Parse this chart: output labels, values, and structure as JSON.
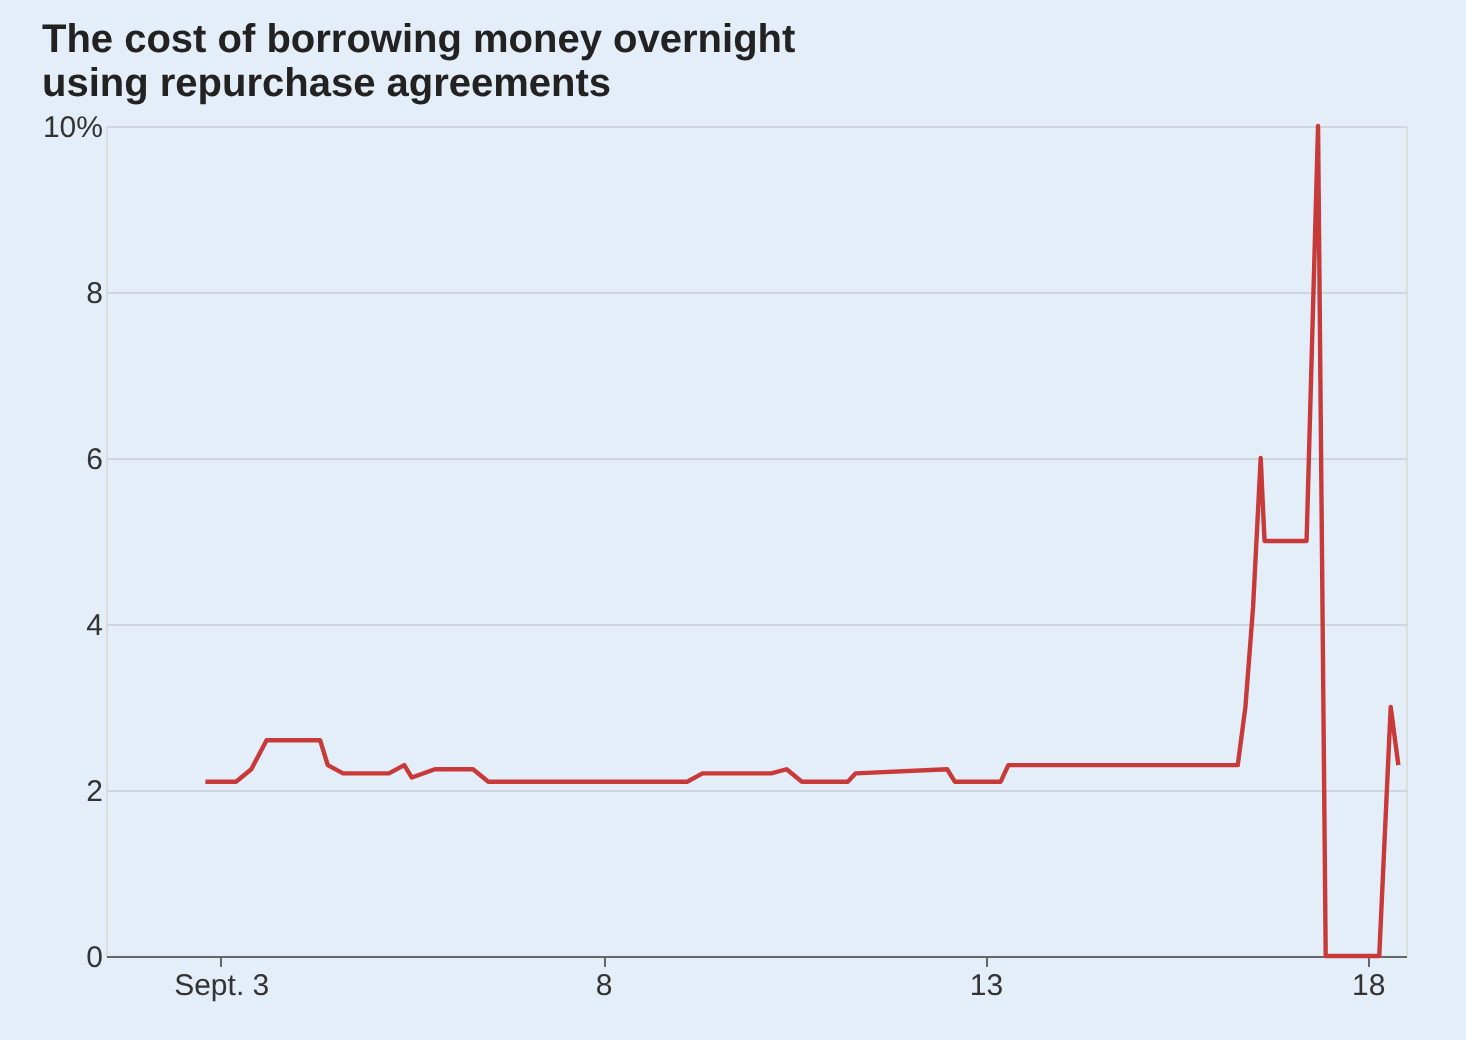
{
  "chart_data": {
    "type": "line",
    "title": [
      "The cost of borrowing money overnight",
      "using repurchase agreements"
    ],
    "x": [
      2.8,
      3.2,
      3.4,
      3.6,
      4.3,
      4.4,
      4.6,
      5.2,
      5.4,
      5.5,
      5.8,
      6.3,
      6.5,
      9.1,
      9.3,
      10.2,
      10.4,
      10.6,
      11.2,
      11.3,
      12.5,
      12.6,
      13.2,
      13.3,
      16.3,
      16.4,
      16.5,
      16.6,
      16.65,
      17.2,
      17.35,
      17.45,
      18.15,
      18.3,
      18.4
    ],
    "series": [
      {
        "color": "#c83a3a",
        "values": [
          2.1,
          2.1,
          2.25,
          2.6,
          2.6,
          2.3,
          2.2,
          2.2,
          2.3,
          2.15,
          2.25,
          2.25,
          2.1,
          2.1,
          2.2,
          2.2,
          2.25,
          2.1,
          2.1,
          2.2,
          2.25,
          2.1,
          2.1,
          2.3,
          2.3,
          3.0,
          4.2,
          6.0,
          5.0,
          5.0,
          10.0,
          0,
          0,
          3.0,
          2.3
        ]
      }
    ],
    "xlim": [
      1.5,
      18.5
    ],
    "xticks": [
      {
        "value": 3,
        "label": "Sept. 3"
      },
      8,
      13,
      18
    ],
    "ylim": [
      0,
      10
    ],
    "yticks": [
      0,
      2,
      4,
      6,
      8,
      {
        "value": 10,
        "label": "10%"
      }
    ],
    "grid": "y",
    "marker": "none",
    "line_style": "solid"
  }
}
